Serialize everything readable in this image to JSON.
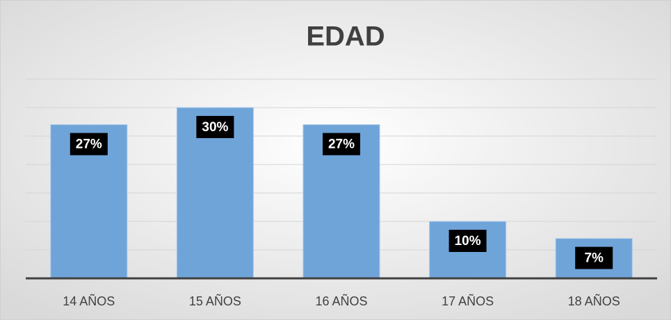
{
  "chart_data": {
    "type": "bar",
    "title": "EDAD",
    "categories": [
      "14 AÑOS",
      "15 AÑOS",
      "16 AÑOS",
      "17 AÑOS",
      "18 AÑOS"
    ],
    "values": [
      27,
      30,
      27,
      10,
      7
    ],
    "value_labels": [
      "27%",
      "30%",
      "27%",
      "10%",
      "7%"
    ],
    "color": "#6fa4d9",
    "ylim": [
      0,
      35
    ],
    "yticks": [
      0,
      5,
      10,
      15,
      20,
      25,
      30,
      35
    ],
    "grid": true
  }
}
